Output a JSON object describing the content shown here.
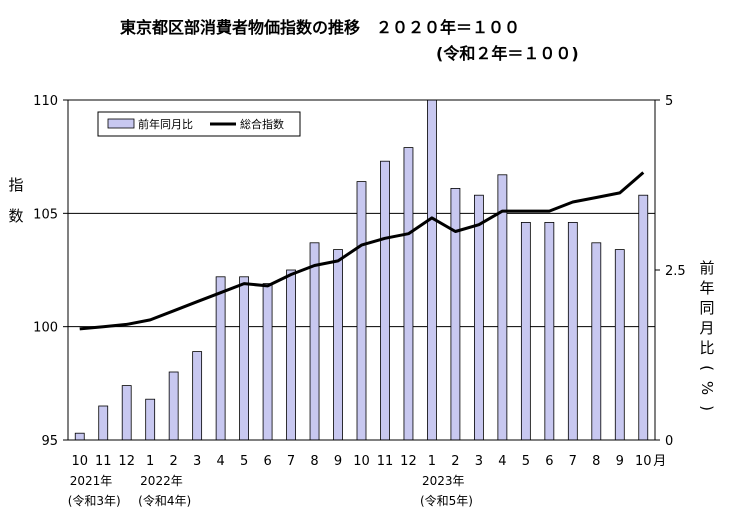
{
  "title": {
    "line1": "東京都区部消費者物価指数の推移　２０２０年＝１００",
    "line2": "(令和２年＝１００)"
  },
  "chart_data": {
    "type": "bar+line",
    "categories": [
      "10",
      "11",
      "12",
      "1",
      "2",
      "3",
      "4",
      "5",
      "6",
      "7",
      "8",
      "9",
      "10",
      "11",
      "12",
      "1",
      "2",
      "3",
      "4",
      "5",
      "6",
      "7",
      "8",
      "9",
      "10"
    ],
    "month_suffix": "月",
    "y_left": {
      "label_chars": [
        "指",
        "数"
      ],
      "ylim": [
        95,
        110
      ],
      "ticks": [
        "95",
        "100",
        "105",
        "110"
      ]
    },
    "y_right": {
      "label_chars": [
        "前",
        "年",
        "同",
        "月",
        "比",
        "(",
        "%",
        ")"
      ],
      "ylim": [
        0,
        5
      ],
      "ticks": [
        "0",
        "2.5",
        "5"
      ]
    },
    "gridlines_left": [
      100,
      105
    ],
    "series": [
      {
        "name": "前年同月比",
        "kind": "bar",
        "axis": "right",
        "color": "#c8c8f0",
        "values": [
          0.1,
          0.5,
          0.8,
          0.6,
          1.0,
          1.3,
          2.4,
          2.4,
          2.3,
          2.5,
          2.9,
          2.8,
          3.8,
          4.1,
          4.3,
          5.0,
          3.7,
          3.6,
          3.9,
          3.2,
          3.2,
          3.2,
          2.9,
          2.8,
          3.6
        ]
      },
      {
        "name": "総合指数",
        "kind": "line",
        "axis": "left",
        "color": "#000000",
        "values": [
          99.9,
          100.0,
          100.1,
          100.3,
          100.7,
          101.1,
          101.5,
          101.9,
          101.8,
          102.3,
          102.7,
          102.9,
          103.6,
          103.9,
          104.1,
          104.8,
          104.2,
          104.5,
          105.1,
          105.1,
          105.1,
          105.5,
          105.7,
          105.9,
          106.8
        ]
      }
    ],
    "legend": {
      "placement": "top-left"
    },
    "year_annotations": [
      {
        "index": 0,
        "year": "2021年",
        "era": "(令和3年)"
      },
      {
        "index": 3,
        "year": "2022年",
        "era": "(令和4年)"
      },
      {
        "index": 15,
        "year": "2023年",
        "era": "(令和5年)"
      }
    ]
  }
}
